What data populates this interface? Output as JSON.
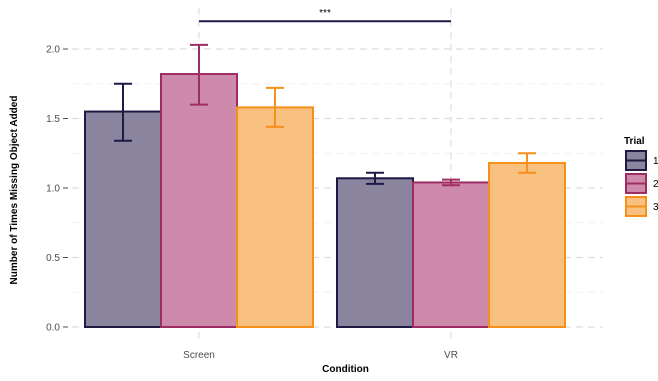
{
  "chart_data": {
    "type": "bar",
    "xlabel": "Condition",
    "ylabel": "Number of Times Missing Object Added",
    "categories": [
      "Screen",
      "VR"
    ],
    "ylim": [
      0,
      2.2
    ],
    "yticks": [
      0.0,
      0.5,
      1.0,
      1.5,
      2.0
    ],
    "ytick_labels": [
      "0.0",
      "0.5",
      "1.0",
      "1.5",
      "2.0"
    ],
    "grid": true,
    "legend": {
      "title": "Trial",
      "position": "right"
    },
    "series": [
      {
        "name": "1",
        "fill": "#8a849e",
        "stroke": "#1f1944",
        "values": [
          1.55,
          1.07
        ],
        "err_low": [
          1.34,
          1.03
        ],
        "err_high": [
          1.75,
          1.11
        ]
      },
      {
        "name": "2",
        "fill": "#cd8aab",
        "stroke": "#9e2d63",
        "values": [
          1.82,
          1.04
        ],
        "err_low": [
          1.6,
          1.02
        ],
        "err_high": [
          2.03,
          1.06
        ]
      },
      {
        "name": "3",
        "fill": "#f8c17f",
        "stroke": "#f5901b",
        "values": [
          1.58,
          1.18
        ],
        "err_low": [
          1.44,
          1.11
        ],
        "err_high": [
          1.72,
          1.25
        ]
      }
    ],
    "annotations": [
      {
        "type": "significance",
        "text": "***",
        "y": 2.2
      }
    ]
  }
}
